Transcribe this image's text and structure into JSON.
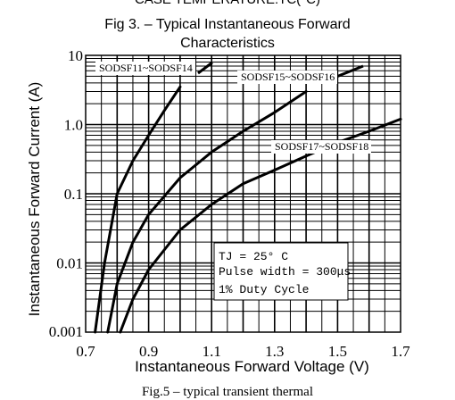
{
  "page": {
    "header_text": "CASE TEMPERATURE:TC(°C)",
    "footer_text": "Fig.5 – typical transient thermal"
  },
  "chart_data": {
    "type": "line",
    "title_lines": [
      "Fig 3. – Typical Instantaneous Forward",
      "Characteristics"
    ],
    "xlabel": "Instantaneous Forward Voltage (V)",
    "ylabel": "Instantaneous Forward Current (A)",
    "xlim": [
      0.7,
      1.7
    ],
    "ylim": [
      0.001,
      10
    ],
    "yscale": "log",
    "grid": true,
    "x_ticks": [
      {
        "value": 0.7,
        "label": "0.7"
      },
      {
        "value": 0.9,
        "label": "0.9"
      },
      {
        "value": 1.1,
        "label": "1.1"
      },
      {
        "value": 1.3,
        "label": "1.3"
      },
      {
        "value": 1.5,
        "label": "1.5"
      },
      {
        "value": 1.7,
        "label": "1.7"
      }
    ],
    "y_ticks": [
      {
        "value": 0.001,
        "label": "0.001"
      },
      {
        "value": 0.01,
        "label": "0.01"
      },
      {
        "value": 0.1,
        "label": "0.1"
      },
      {
        "value": 1.0,
        "label": "1.0"
      },
      {
        "value": 10,
        "label": "10"
      }
    ],
    "series": [
      {
        "name": "SODSF11~SODSF14",
        "x": [
          0.73,
          0.76,
          0.8,
          0.85,
          0.9,
          0.95,
          1.0
        ],
        "y": [
          0.001,
          0.01,
          0.1,
          0.3,
          0.7,
          1.6,
          3.5
        ]
      },
      {
        "name": "SODSF15~SODSF16",
        "x": [
          0.77,
          0.8,
          0.85,
          0.9,
          1.0,
          1.1,
          1.2,
          1.3,
          1.4
        ],
        "y": [
          0.001,
          0.005,
          0.02,
          0.05,
          0.17,
          0.4,
          0.8,
          1.5,
          3.0
        ]
      },
      {
        "name": "SODSF17~SODSF18",
        "x": [
          0.81,
          0.85,
          0.9,
          1.0,
          1.1,
          1.2,
          1.3,
          1.4,
          1.5,
          1.6,
          1.7
        ],
        "y": [
          0.001,
          0.003,
          0.008,
          0.03,
          0.07,
          0.14,
          0.22,
          0.35,
          0.55,
          0.8,
          1.2
        ]
      }
    ],
    "annotations": [
      "TJ = 25° C",
      "Pulse width = 300μs",
      "1% Duty Cycle"
    ]
  }
}
